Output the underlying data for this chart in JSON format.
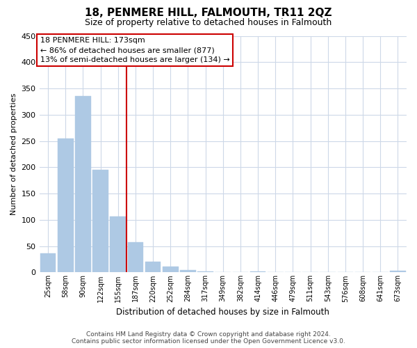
{
  "title": "18, PENMERE HILL, FALMOUTH, TR11 2QZ",
  "subtitle": "Size of property relative to detached houses in Falmouth",
  "xlabel": "Distribution of detached houses by size in Falmouth",
  "ylabel": "Number of detached properties",
  "bar_labels": [
    "25sqm",
    "58sqm",
    "90sqm",
    "122sqm",
    "155sqm",
    "187sqm",
    "220sqm",
    "252sqm",
    "284sqm",
    "317sqm",
    "349sqm",
    "382sqm",
    "414sqm",
    "446sqm",
    "479sqm",
    "511sqm",
    "543sqm",
    "576sqm",
    "608sqm",
    "641sqm",
    "673sqm"
  ],
  "bar_values": [
    36,
    255,
    335,
    195,
    106,
    57,
    21,
    11,
    5,
    2,
    0,
    0,
    2,
    0,
    0,
    0,
    0,
    0,
    0,
    0,
    3
  ],
  "bar_color": "#aec9e4",
  "property_line_x": 4.5,
  "annotation_text": "18 PENMERE HILL: 173sqm\n← 86% of detached houses are smaller (877)\n13% of semi-detached houses are larger (134) →",
  "annotation_box_color": "#ffffff",
  "annotation_box_edge": "#cc0000",
  "line_color": "#cc0000",
  "ylim": [
    0,
    450
  ],
  "yticks": [
    0,
    50,
    100,
    150,
    200,
    250,
    300,
    350,
    400,
    450
  ],
  "footer_line1": "Contains HM Land Registry data © Crown copyright and database right 2024.",
  "footer_line2": "Contains public sector information licensed under the Open Government Licence v3.0.",
  "background_color": "#ffffff",
  "grid_color": "#cdd8e8"
}
